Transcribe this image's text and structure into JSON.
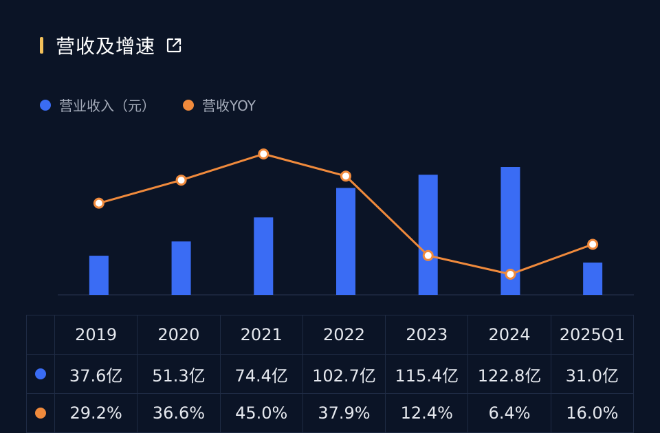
{
  "title": "营收及增速",
  "colors": {
    "background": "#0b1426",
    "accent": "#f3c05a",
    "bar": "#3a6cf4",
    "line": "#f08a3c"
  },
  "legend": [
    {
      "label": "营业收入（元）",
      "color": "#3a6cf4"
    },
    {
      "label": "营收YOY",
      "color": "#f08a3c"
    }
  ],
  "table": {
    "years": [
      "2019",
      "2020",
      "2021",
      "2022",
      "2023",
      "2024",
      "2025Q1"
    ],
    "revenue_labels": [
      "37.6亿",
      "51.3亿",
      "74.4亿",
      "102.7亿",
      "115.4亿",
      "122.8亿",
      "31.0亿"
    ],
    "yoy_labels": [
      "29.2%",
      "36.6%",
      "45.0%",
      "37.9%",
      "12.4%",
      "6.4%",
      "16.0%"
    ]
  },
  "chart_data": {
    "type": "bar",
    "categories": [
      "2019",
      "2020",
      "2021",
      "2022",
      "2023",
      "2024",
      "2025Q1"
    ],
    "series": [
      {
        "name": "营业收入（元）",
        "type": "bar",
        "unit": "亿",
        "values": [
          37.6,
          51.3,
          74.4,
          102.7,
          115.4,
          122.8,
          31.0
        ]
      },
      {
        "name": "营收YOY",
        "type": "line",
        "unit": "%",
        "values": [
          29.2,
          36.6,
          45.0,
          37.9,
          12.4,
          6.4,
          16.0
        ]
      }
    ],
    "legend_position": "top-left",
    "grid": false
  }
}
